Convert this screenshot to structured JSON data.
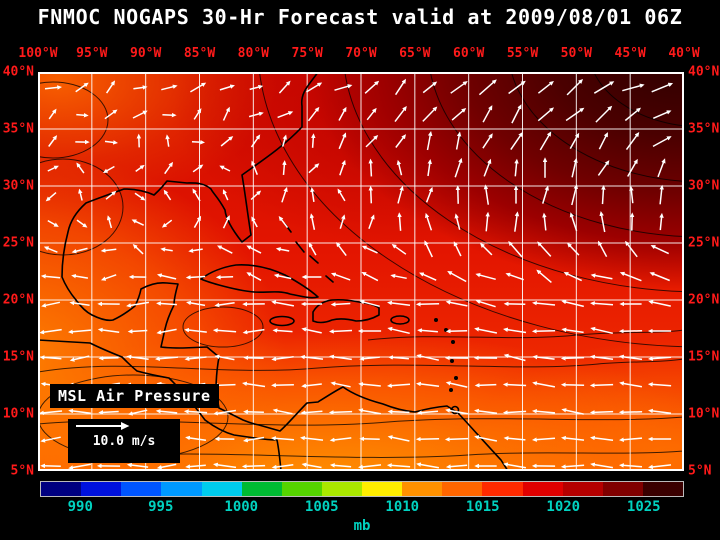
{
  "title": "FNMOC NOGAPS 30-Hr Forecast valid at 2009/08/01 06Z",
  "axes": {
    "lon_labels": [
      "100°W",
      "95°W",
      "90°W",
      "85°W",
      "80°W",
      "75°W",
      "70°W",
      "65°W",
      "60°W",
      "55°W",
      "50°W",
      "45°W",
      "40°W"
    ],
    "lat_labels": [
      "40°N",
      "35°N",
      "30°N",
      "25°N",
      "20°N",
      "15°N",
      "10°N",
      "5°N"
    ]
  },
  "map_overlays": {
    "field_label": "MSL Air Pressure",
    "wind_speed_label": "10.0 m/s"
  },
  "colorbar": {
    "unit": "mb",
    "tick_labels": [
      "990",
      "995",
      "1000",
      "1005",
      "1010",
      "1015",
      "1020",
      "1025"
    ],
    "segment_colors": [
      "#000080",
      "#0011dd",
      "#0055ff",
      "#0099ff",
      "#00ccee",
      "#00bb33",
      "#55d400",
      "#aae800",
      "#ffee00",
      "#ff9100",
      "#ff6600",
      "#ff2a00",
      "#e00000",
      "#b50000",
      "#800000",
      "#3a0000"
    ]
  },
  "colors": {
    "title_text": "#ffffff",
    "axis_label_text": "#ff1a1a",
    "tick_label_text": "#00d2c0",
    "grid_line": "#ffffff",
    "wind_arrow": "#ffffff",
    "contour_line": "#000000",
    "coastline": "#000000"
  },
  "chart_data": {
    "type": "heatmap",
    "title": "FNMOC NOGAPS 30-Hr Forecast valid at 2009/08/01 06Z",
    "field": "MSL Air Pressure",
    "unit": "mb",
    "forecast_hour": 30,
    "valid_time": "2009/08/01 06Z",
    "x_ticks": [
      "100°W",
      "95°W",
      "90°W",
      "85°W",
      "80°W",
      "75°W",
      "70°W",
      "65°W",
      "60°W",
      "55°W",
      "50°W",
      "45°W",
      "40°W"
    ],
    "y_ticks": [
      "40°N",
      "35°N",
      "30°N",
      "25°N",
      "20°N",
      "15°N",
      "10°N",
      "5°N"
    ],
    "colorbar_values": [
      990,
      995,
      1000,
      1005,
      1010,
      1015,
      1020,
      1025
    ],
    "colorbar_range": [
      987.5,
      1027.5
    ],
    "wind_vector_reference": "10.0 m/s",
    "overlay_layers": [
      "pressure fill",
      "isobar contours",
      "wind vectors",
      "coastlines",
      "lat-lon grid"
    ]
  }
}
